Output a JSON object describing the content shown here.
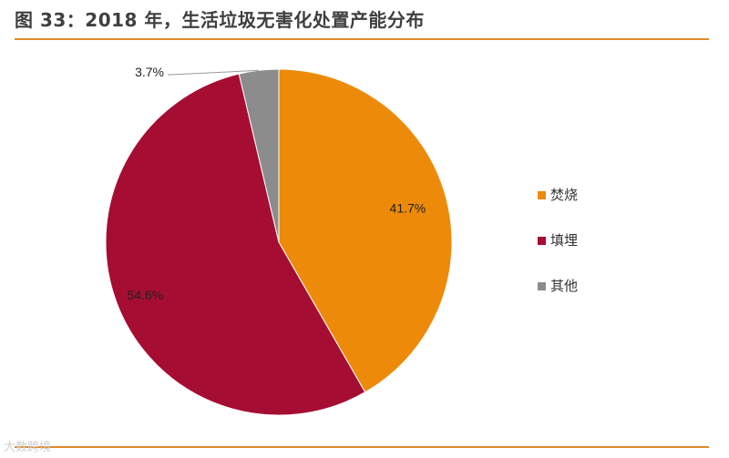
{
  "title": "图 33：2018 年，生活垃圾无害化处置产能分布",
  "watermark": "大数跨境",
  "chart_data": {
    "type": "pie",
    "title": "图 33：2018 年，生活垃圾无害化处置产能分布",
    "slices": [
      {
        "label": "焚烧",
        "value": 41.7,
        "display": "41.7%",
        "color": "#ed8a09"
      },
      {
        "label": "填埋",
        "value": 54.6,
        "display": "54.6%",
        "color": "#a60d33"
      },
      {
        "label": "其他",
        "value": 3.7,
        "display": "3.7%",
        "color": "#8c8c8c"
      }
    ],
    "legend": {
      "position": "right"
    },
    "start_angle": "12 o'clock",
    "direction": "clockwise"
  }
}
